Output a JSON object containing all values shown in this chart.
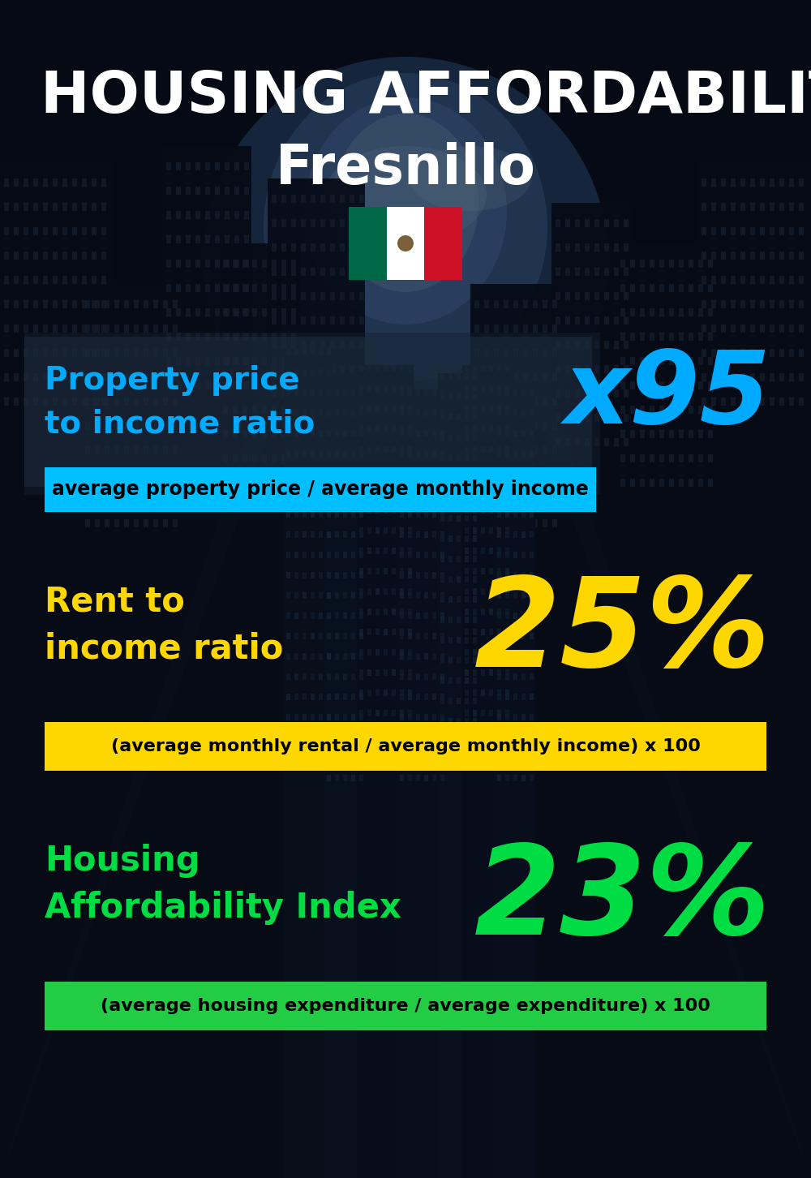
{
  "title_line1": "HOUSING AFFORDABILITY",
  "title_line2": "Fresnillo",
  "bg_color": "#080e1a",
  "section1_label": "Property price\nto income ratio",
  "section1_value": "x95",
  "section1_label_color": "#00aaff",
  "section1_value_color": "#00aaff",
  "section1_formula": "average property price / average monthly income",
  "section1_formula_bg": "#00bfff",
  "section2_label": "Rent to\nincome ratio",
  "section2_value": "25%",
  "section2_label_color": "#ffd700",
  "section2_value_color": "#ffd700",
  "section2_formula": "(average monthly rental / average monthly income) x 100",
  "section2_formula_bg": "#ffd700",
  "section3_label": "Housing\nAffordability Index",
  "section3_value": "23%",
  "section3_label_color": "#00dd44",
  "section3_value_color": "#00dd44",
  "section3_formula": "(average housing expenditure / average expenditure) x 100",
  "section3_formula_bg": "#22cc44",
  "flag_green": "#006847",
  "flag_white": "#FFFFFF",
  "flag_red": "#CE1126"
}
